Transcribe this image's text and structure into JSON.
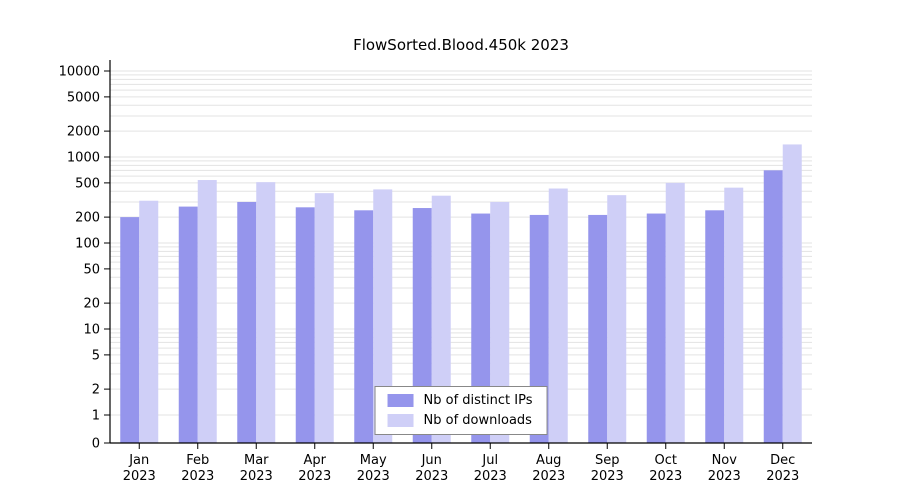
{
  "title": "FlowSorted.Blood.450k 2023",
  "legend": {
    "items": [
      {
        "label": "Nb of distinct IPs",
        "color": "#9595ec"
      },
      {
        "label": "Nb of downloads",
        "color": "#cfcff7"
      }
    ]
  },
  "chart_data": {
    "type": "bar",
    "title": "FlowSorted.Blood.450k 2023",
    "categories": [
      "Jan 2023",
      "Feb 2023",
      "Mar 2023",
      "Apr 2023",
      "May 2023",
      "Jun 2023",
      "Jul 2023",
      "Aug 2023",
      "Sep 2023",
      "Oct 2023",
      "Nov 2023",
      "Dec 2023"
    ],
    "series": [
      {
        "name": "Nb of distinct IPs",
        "color": "#9595ec",
        "values": [
          200,
          265,
          300,
          260,
          240,
          255,
          220,
          212,
          212,
          220,
          240,
          700
        ]
      },
      {
        "name": "Nb of downloads",
        "color": "#cfcff7",
        "values": [
          310,
          540,
          510,
          380,
          420,
          355,
          300,
          430,
          360,
          500,
          440,
          1400
        ]
      }
    ],
    "xlabel": "",
    "ylabel": "",
    "yscale": "log",
    "yticks": [
      0,
      1,
      2,
      5,
      10,
      20,
      50,
      100,
      200,
      500,
      1000,
      2000,
      5000,
      10000
    ],
    "ylim": [
      0,
      12000
    ],
    "grid": true,
    "grid_color": "#e3e3e3",
    "legend_position": "bottom-center-inside"
  }
}
